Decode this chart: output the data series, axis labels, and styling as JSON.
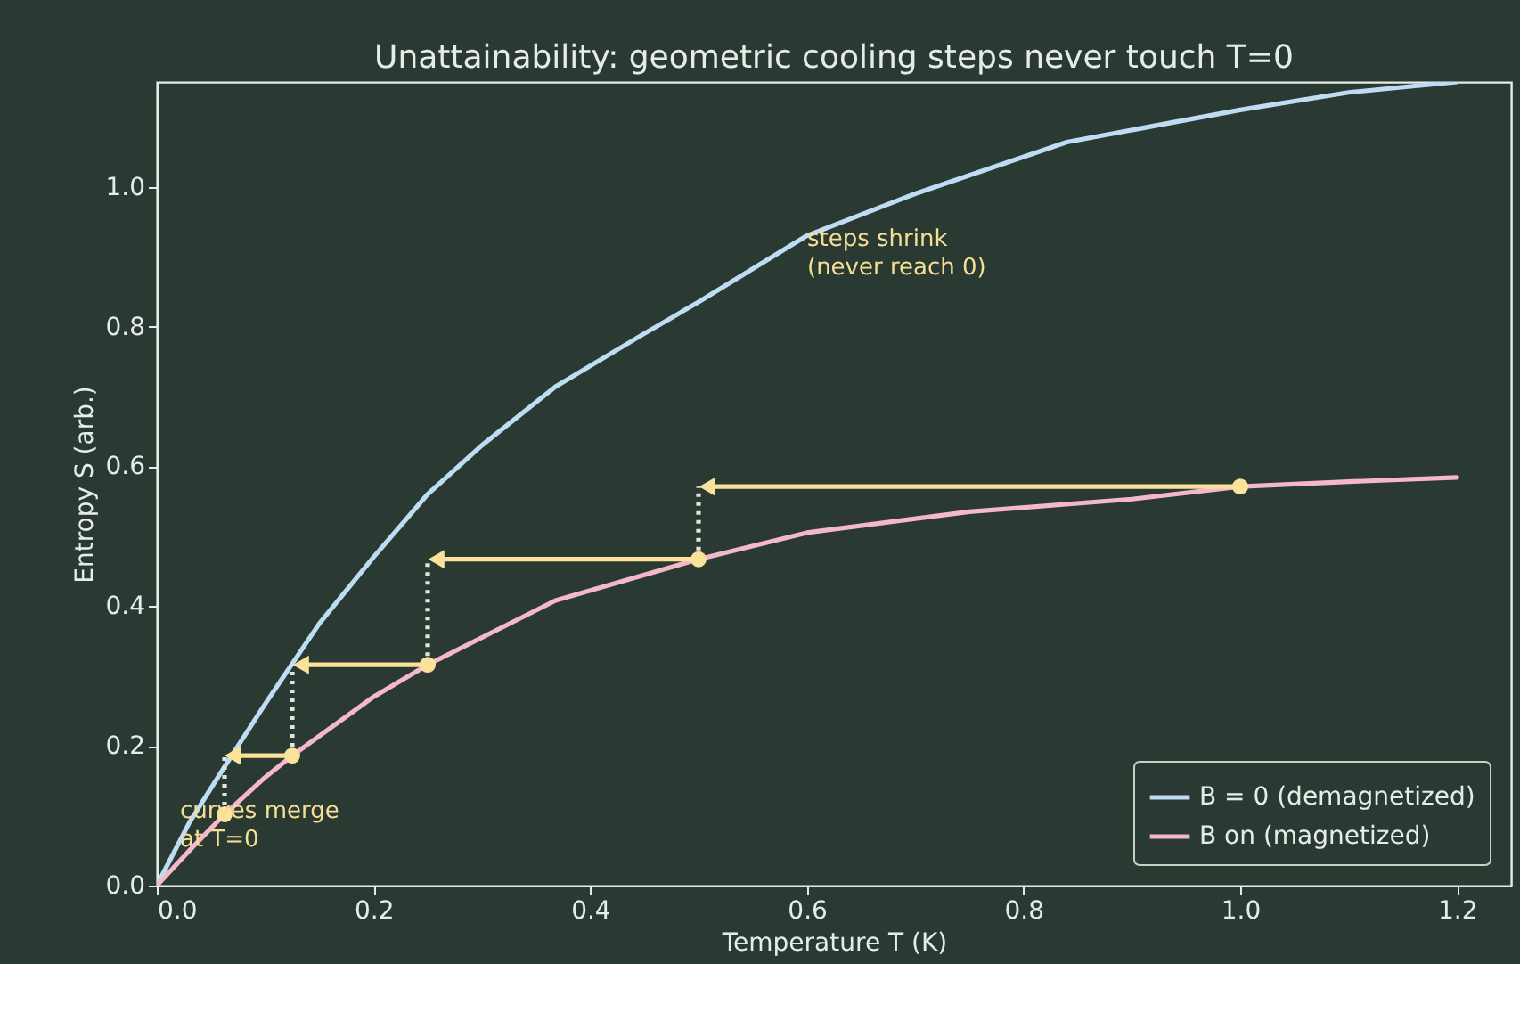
{
  "chart_data": {
    "type": "line",
    "title": "Unattainability: geometric cooling steps never touch T=0",
    "xlabel": "Temperature  T  (K)",
    "ylabel": "Entropy  S  (arb.)",
    "xlim": [
      0,
      1.25
    ],
    "ylim": [
      0,
      1.15
    ],
    "xticks": [
      {
        "value": 0,
        "label": "0.0"
      },
      0.2,
      0.4,
      0.6,
      0.8,
      {
        "value": 1,
        "label": "1.0"
      },
      1.2
    ],
    "yticks": [
      {
        "value": 0,
        "label": "0.0"
      },
      0.2,
      0.4,
      0.6,
      0.8,
      {
        "value": 1,
        "label": "1.0"
      }
    ],
    "grid": false,
    "legend": "bottom right",
    "line_style": "solid",
    "marker": "none",
    "series": [
      {
        "name": "B = 0 (demagnetized)",
        "color": "#bfdcf5",
        "x": [
          0,
          0.03,
          0.0625,
          0.1,
          0.15,
          0.2,
          0.25,
          0.3,
          0.368,
          0.45,
          0.5,
          0.6,
          0.7,
          0.84,
          1.0,
          1.1,
          1.2
        ],
        "values": [
          0,
          0.09,
          0.17,
          0.26,
          0.375,
          0.47,
          0.56,
          0.63,
          0.714,
          0.79,
          0.835,
          0.93,
          0.99,
          1.064,
          1.11,
          1.135,
          1.15
        ]
      },
      {
        "name": "B on (magnetized)",
        "color": "#f5b8cb",
        "x": [
          0,
          0.03,
          0.0625,
          0.1,
          0.125,
          0.2,
          0.25,
          0.368,
          0.5,
          0.6,
          0.75,
          0.9,
          1.0,
          1.1,
          1.2
        ],
        "values": [
          0,
          0.05,
          0.102,
          0.155,
          0.186,
          0.27,
          0.316,
          0.408,
          0.467,
          0.505,
          0.535,
          0.553,
          0.571,
          0.578,
          0.584
        ]
      },
      {
        "type": "line",
        "line_style": "dotted",
        "color": "#dfe6e0",
        "x": [
          0.5,
          0.5
        ],
        "values": [
          0.467,
          0.571
        ]
      },
      {
        "type": "line",
        "line_style": "dotted",
        "color": "#dfe6e0",
        "x": [
          0.25,
          0.25
        ],
        "values": [
          0.316,
          0.467
        ]
      },
      {
        "type": "line",
        "line_style": "dotted",
        "color": "#dfe6e0",
        "x": [
          0.125,
          0.125
        ],
        "values": [
          0.186,
          0.316
        ]
      },
      {
        "type": "line",
        "line_style": "dotted",
        "color": "#dfe6e0",
        "x": [
          0.0625,
          0.0625
        ],
        "values": [
          0.102,
          0.186
        ]
      },
      {
        "type": "line",
        "marker": "triangle",
        "color": "#fbe29a",
        "x": [
          1.0,
          0.508
        ],
        "values": [
          0.571,
          0.571
        ]
      },
      {
        "type": "line",
        "marker": "triangle",
        "color": "#fbe29a",
        "x": [
          0.5,
          0.258
        ],
        "values": [
          0.467,
          0.467
        ]
      },
      {
        "type": "line",
        "marker": "triangle",
        "color": "#fbe29a",
        "x": [
          0.25,
          0.133
        ],
        "values": [
          0.316,
          0.316
        ]
      },
      {
        "type": "line",
        "marker": "triangle",
        "color": "#fbe29a",
        "x": [
          0.125,
          0.07
        ],
        "values": [
          0.186,
          0.186
        ]
      },
      {
        "type": "scatter",
        "marker": "circle",
        "color": "#fbe29a",
        "x": [
          1.0,
          0.5,
          0.25,
          0.125,
          0.0625
        ],
        "values": [
          0.571,
          0.467,
          0.316,
          0.186,
          0.102
        ]
      }
    ],
    "annotations": [
      "steps shrink\n(never reach 0)",
      "curves merge\nat T=0"
    ]
  }
}
